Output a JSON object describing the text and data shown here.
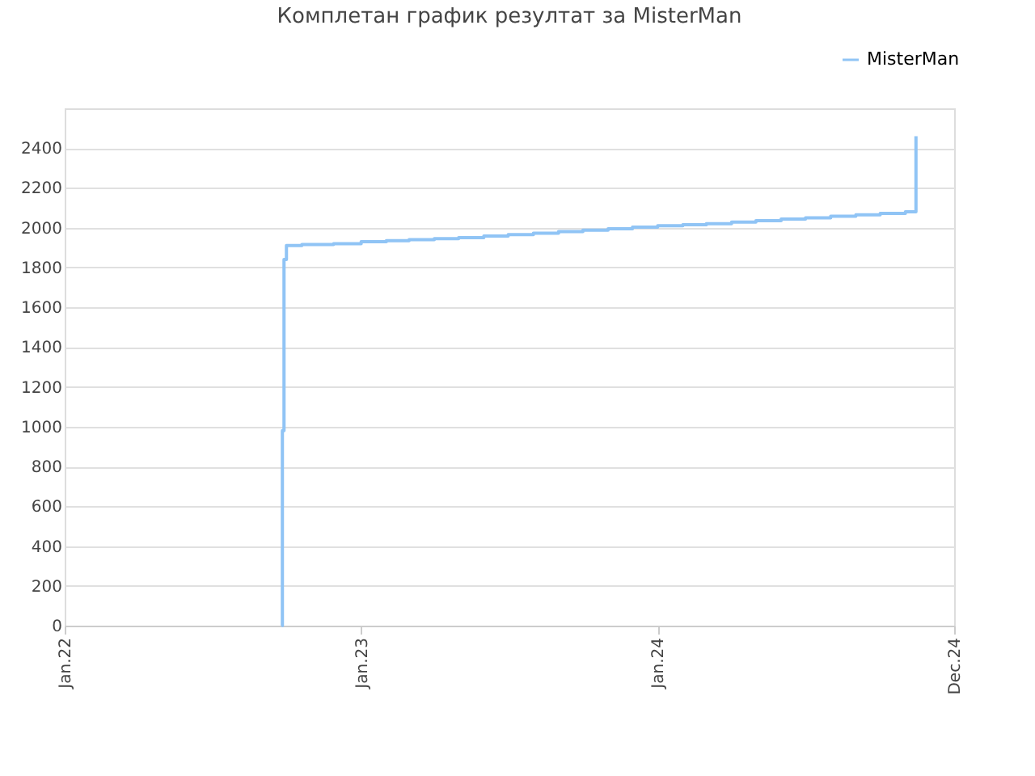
{
  "chart_data": {
    "type": "step",
    "title": "Комплетан график резултат за MisterMan",
    "x": [
      "2022-09-25",
      "2022-09-26",
      "2022-09-28",
      "2022-10-01",
      "2022-10-20",
      "2022-11-28",
      "2023-01-01",
      "2023-02-01",
      "2023-03-01",
      "2023-04-01",
      "2023-05-01",
      "2023-06-01",
      "2023-07-01",
      "2023-08-01",
      "2023-09-01",
      "2023-10-01",
      "2023-11-01",
      "2023-12-01",
      "2024-01-01",
      "2024-02-01",
      "2024-03-01",
      "2024-04-01",
      "2024-05-01",
      "2024-06-01",
      "2024-07-01",
      "2024-08-01",
      "2024-09-01",
      "2024-10-01",
      "2024-11-01",
      "2024-11-14"
    ],
    "series": [
      {
        "name": "MisterMan",
        "color": "#90c4f5",
        "values": [
          0,
          980,
          1840,
          1910,
          1915,
          1920,
          1930,
          1935,
          1940,
          1945,
          1950,
          1958,
          1965,
          1972,
          1980,
          1988,
          1995,
          2003,
          2010,
          2015,
          2020,
          2028,
          2035,
          2043,
          2050,
          2058,
          2065,
          2072,
          2080,
          2460
        ]
      }
    ],
    "xlim": [
      "2022-01-01",
      "2024-12-31"
    ],
    "xticks": [
      {
        "value": "2022-01-01",
        "label": "Jan.22"
      },
      {
        "value": "2023-01-01",
        "label": "Jan.23"
      },
      {
        "value": "2024-01-01",
        "label": "Jan.24"
      },
      {
        "value": "2024-12-31",
        "label": "Dec.24"
      }
    ],
    "ylim": [
      0,
      2600
    ],
    "yticks": [
      0,
      200,
      400,
      600,
      800,
      1000,
      1200,
      1400,
      1600,
      1800,
      2000,
      2200,
      2400
    ],
    "grid": "y",
    "legend": "top right",
    "marker": "none",
    "line_style": "solid"
  }
}
